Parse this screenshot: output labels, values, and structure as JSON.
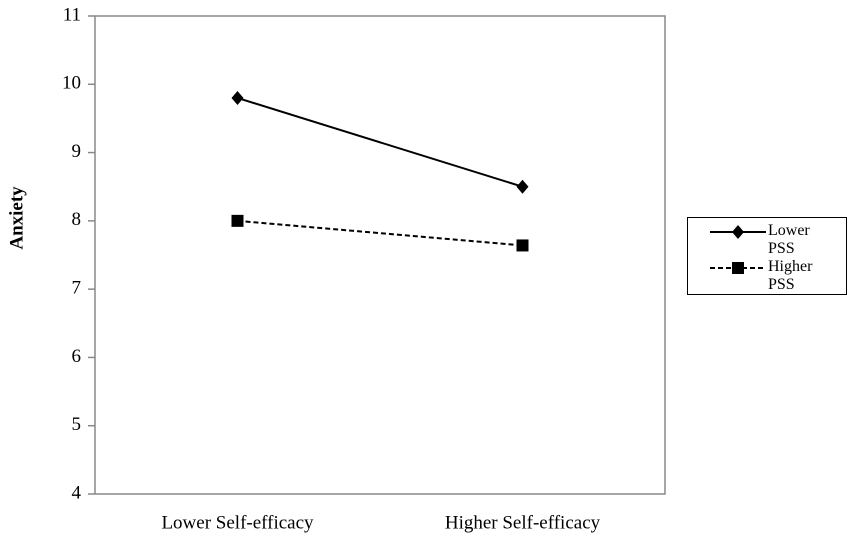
{
  "chart_data": {
    "type": "line",
    "ylabel": "Anxiety",
    "categories": [
      "Lower Self-efficacy",
      "Higher Self-efficacy"
    ],
    "series": [
      {
        "name": "Lower PSS",
        "color": "#000000",
        "marker": "diamond",
        "dashed": false,
        "values": [
          9.8,
          8.5
        ]
      },
      {
        "name": "Higher PSS",
        "color": "#000000",
        "marker": "square",
        "dashed": true,
        "values": [
          8.0,
          7.64
        ]
      }
    ],
    "ylim": [
      4,
      11
    ],
    "yticks": [
      4,
      5,
      6,
      7,
      8,
      9,
      10,
      11
    ],
    "legend": "right"
  }
}
